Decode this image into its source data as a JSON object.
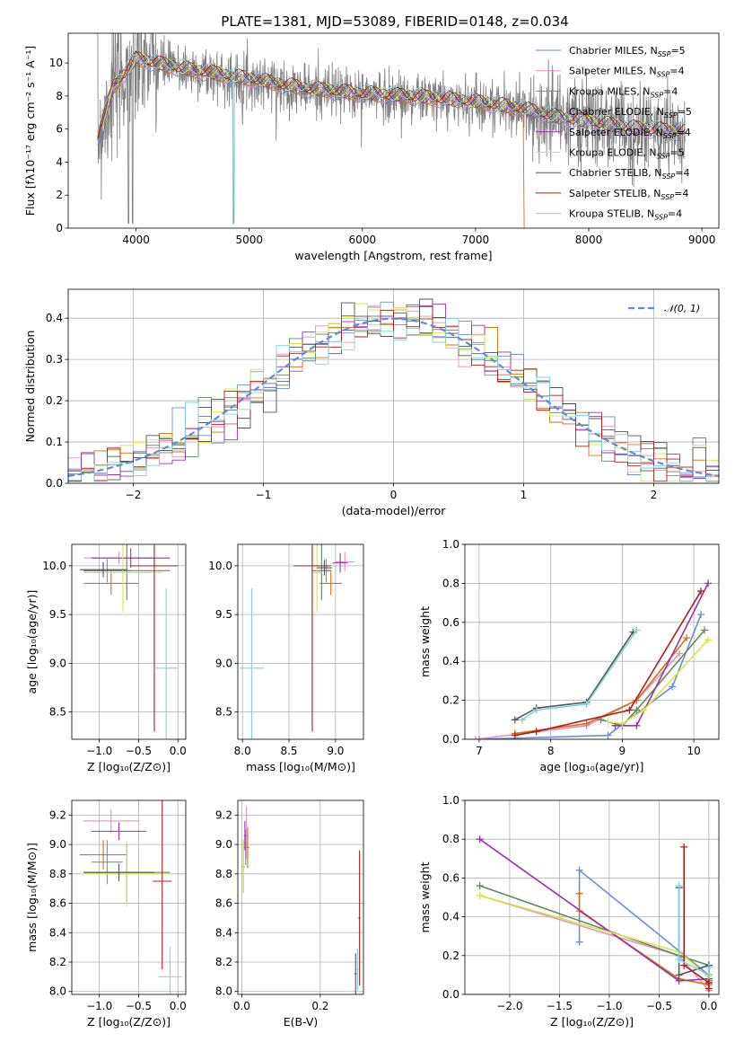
{
  "colors": [
    "#6b8fd6",
    "#e68fbf",
    "#d4720f",
    "#5e8a5a",
    "#9b30b0",
    "#d8e640",
    "#555555",
    "#b01c1c",
    "#7fd4d9"
  ],
  "model_labels": [
    "Chabrier MILES, N",
    "Salpeter MILES, N",
    "Kroupa MILES, N",
    "Chabrier ELODIE, N",
    "Salpeter ELODIE, N",
    "Kroupa ELODIE, N",
    "Chabrier STELIB, N",
    "Salpeter STELIB, N",
    "Kroupa STELIB, N"
  ],
  "legend_sub": "SSP",
  "nssp": [
    "=5",
    "=4",
    "=4",
    "=5",
    "=4",
    "=5",
    "=4",
    "=4",
    "=4"
  ],
  "chart_data": [
    {
      "id": "spectrum",
      "type": "line",
      "title": "PLATE=1381, MJD=53089, FIBERID=0148, z=0.034",
      "xlabel": "wavelength [Angstrom, rest frame]",
      "ylabel": "Flux [fλ10⁻¹⁷ erg cm⁻² s⁻¹ A⁻¹]",
      "xlim": [
        3400,
        9150
      ],
      "ylim": [
        0,
        11.8
      ],
      "xticks": [
        4000,
        5000,
        6000,
        7000,
        8000,
        9000
      ],
      "yticks": [
        0,
        2,
        4,
        6,
        8,
        10
      ],
      "legend_position": "top-right",
      "series": [
        {
          "x": [
            3660,
            3800,
            4000,
            4200,
            4500,
            5000,
            5500,
            6000,
            6500,
            7000,
            7400,
            7700,
            8000,
            8400,
            8800
          ],
          "y": [
            5.5,
            8.5,
            10.2,
            9.9,
            9.5,
            9.0,
            8.4,
            8.1,
            7.9,
            7.6,
            7.2,
            6.7,
            6.4,
            6.0,
            5.8
          ]
        }
      ]
    },
    {
      "id": "residuals",
      "type": "histogram",
      "xlabel": "(data-model)/error",
      "ylabel": "Normed distribution",
      "xlim": [
        -2.5,
        2.5
      ],
      "ylim": [
        0,
        0.47
      ],
      "xticks": [
        -2,
        -1,
        0,
        1,
        2
      ],
      "yticks": [
        0.0,
        0.1,
        0.2,
        0.3,
        0.4
      ],
      "legend": "𝒩(0, 1)",
      "legend_position": "top-right",
      "bin_width": 0.1
    },
    {
      "id": "age-metallicity",
      "type": "scatter",
      "xlabel": "Z [log₁₀(Z/Z⊙)]",
      "ylabel": "age  [log₁₀(age/yr)]",
      "xlim": [
        -1.35,
        0.1
      ],
      "ylim": [
        8.22,
        10.22
      ],
      "xticks": [
        -1.0,
        -0.5,
        0.0
      ],
      "yticks": [
        8.5,
        9.0,
        9.5,
        10.0
      ],
      "points": [
        {
          "x": -0.9,
          "xerr": 0.3,
          "y": 9.95,
          "yerr": 0.12
        },
        {
          "x": -0.75,
          "xerr": 0.45,
          "y": 10.08,
          "yerr": 0.06
        },
        {
          "x": -0.85,
          "xerr": 0.35,
          "y": 9.82,
          "yerr": 0.12
        },
        {
          "x": -0.65,
          "xerr": 0.55,
          "y": 9.95,
          "yerr": 0.3
        },
        {
          "x": -0.6,
          "xerr": 0.5,
          "y": 10.08,
          "yerr": 0.1
        },
        {
          "x": -0.7,
          "xerr": 0.5,
          "y": 9.93,
          "yerr": 0.4
        },
        {
          "x": -0.95,
          "xerr": 0.3,
          "y": 9.96,
          "yerr": 0.08
        },
        {
          "x": -0.3,
          "xerr": 0.3,
          "y": 10.0,
          "yerr": 1.7
        },
        {
          "x": -0.15,
          "xerr": 0.15,
          "y": 8.95,
          "yerr": 0.82
        }
      ]
    },
    {
      "id": "age-mass",
      "type": "scatter",
      "xlabel": "mass [log₁₀(M/M⊙)]",
      "xlim": [
        7.95,
        9.3
      ],
      "ylim": [
        8.22,
        10.22
      ],
      "xticks": [
        8.0,
        8.5,
        9.0
      ],
      "yticks": [
        8.5,
        9.0,
        9.5,
        10.0
      ],
      "points": [
        {
          "x": 8.9,
          "xerr": 0.06,
          "y": 9.95,
          "yerr": 0.12
        },
        {
          "x": 9.1,
          "xerr": 0.1,
          "y": 10.04,
          "yerr": 0.1
        },
        {
          "x": 8.95,
          "xerr": 0.12,
          "y": 9.82,
          "yerr": 0.12
        },
        {
          "x": 8.85,
          "xerr": 0.1,
          "y": 9.95,
          "yerr": 0.3
        },
        {
          "x": 9.05,
          "xerr": 0.08,
          "y": 10.03,
          "yerr": 0.1
        },
        {
          "x": 8.8,
          "xerr": 0.06,
          "y": 9.93,
          "yerr": 0.4
        },
        {
          "x": 8.88,
          "xerr": 0.08,
          "y": 9.98,
          "yerr": 0.08
        },
        {
          "x": 8.75,
          "xerr": 0.2,
          "y": 10.0,
          "yerr": 1.7
        },
        {
          "x": 8.1,
          "xerr": 0.13,
          "y": 8.95,
          "yerr": 0.82
        }
      ]
    },
    {
      "id": "mass-weight-age",
      "type": "line",
      "xlabel": "age  [log₁₀(age/yr)]",
      "ylabel": "mass weight",
      "xlim": [
        6.8,
        10.35
      ],
      "ylim": [
        0,
        1.0
      ],
      "xticks": [
        7,
        8,
        9,
        10
      ],
      "yticks": [
        0.0,
        0.2,
        0.4,
        0.6,
        0.8,
        1.0
      ],
      "series": [
        {
          "x": [
            7.0,
            8.8,
            9.7,
            10.1
          ],
          "y": [
            0.0,
            0.02,
            0.27,
            0.64
          ]
        },
        {
          "x": [
            6.95,
            8.5,
            9.2,
            9.8
          ],
          "y": [
            0.0,
            0.07,
            0.2,
            0.44
          ]
        },
        {
          "x": [
            7.5,
            8.5,
            9.2,
            9.9
          ],
          "y": [
            0.03,
            0.08,
            0.2,
            0.52
          ]
        },
        {
          "x": [
            8.7,
            9.0,
            9.2,
            10.15
          ],
          "y": [
            0.1,
            0.07,
            0.15,
            0.56
          ]
        },
        {
          "x": [
            8.9,
            9.2,
            10.2
          ],
          "y": [
            0.07,
            0.07,
            0.8
          ]
        },
        {
          "x": [
            8.8,
            9.0,
            9.3,
            10.2
          ],
          "y": [
            0.09,
            0.08,
            0.15,
            0.51
          ]
        },
        {
          "x": [
            7.5,
            7.8,
            8.5,
            9.15
          ],
          "y": [
            0.1,
            0.16,
            0.19,
            0.55
          ]
        },
        {
          "x": [
            7.5,
            7.8,
            9.1,
            10.1
          ],
          "y": [
            0.02,
            0.04,
            0.15,
            0.76
          ]
        },
        {
          "x": [
            7.6,
            7.8,
            8.5,
            9.2
          ],
          "y": [
            0.1,
            0.15,
            0.18,
            0.56
          ]
        }
      ]
    },
    {
      "id": "mass-metallicity",
      "type": "scatter",
      "xlabel": "Z [log₁₀(Z/Z⊙)]",
      "ylabel": "mass [log₁₀(M/M⊙)]",
      "xlim": [
        -1.35,
        0.1
      ],
      "ylim": [
        7.98,
        9.3
      ],
      "xticks": [
        -1.0,
        -0.5,
        0.0
      ],
      "yticks": [
        8.0,
        8.2,
        8.4,
        8.6,
        8.8,
        9.0,
        9.2
      ],
      "points": [
        {
          "x": -0.9,
          "xerr": 0.2,
          "y": 8.88,
          "yerr": 0.15
        },
        {
          "x": -0.85,
          "xerr": 0.35,
          "y": 9.16,
          "yerr": 0.08
        },
        {
          "x": -0.95,
          "xerr": 0.3,
          "y": 8.93,
          "yerr": 0.1
        },
        {
          "x": -0.65,
          "xerr": 0.55,
          "y": 8.81,
          "yerr": 0.2
        },
        {
          "x": -0.75,
          "xerr": 0.35,
          "y": 9.09,
          "yerr": 0.06
        },
        {
          "x": -0.65,
          "xerr": 0.55,
          "y": 8.8,
          "yerr": 0.22
        },
        {
          "x": -0.75,
          "xerr": 0.45,
          "y": 8.81,
          "yerr": 0.06
        },
        {
          "x": -0.2,
          "xerr": 0.12,
          "y": 8.75,
          "yerr": 0.6
        },
        {
          "x": -0.1,
          "xerr": 0.15,
          "y": 8.1,
          "yerr": 0.2
        }
      ]
    },
    {
      "id": "mass-ebv",
      "type": "scatter",
      "xlabel": "E(B-V)",
      "xlim": [
        -0.01,
        0.31
      ],
      "ylim": [
        7.98,
        9.3
      ],
      "xticks": [
        0.0,
        0.2
      ],
      "yticks": [
        8.0,
        8.2,
        8.4,
        8.6,
        8.8,
        9.0,
        9.2
      ],
      "points": [
        {
          "x": 0.01,
          "xerr": 0.005,
          "y": 8.98,
          "yerr": 0.12
        },
        {
          "x": 0.012,
          "xerr": 0.004,
          "y": 9.08,
          "yerr": 0.18
        },
        {
          "x": 0.015,
          "xerr": 0.004,
          "y": 8.98,
          "yerr": 0.14
        },
        {
          "x": 0.004,
          "xerr": 0.004,
          "y": 8.85,
          "yerr": 0.18
        },
        {
          "x": 0.008,
          "xerr": 0.003,
          "y": 9.06,
          "yerr": 0.1
        },
        {
          "x": 0.004,
          "xerr": 0.003,
          "y": 8.85,
          "yerr": 0.18
        },
        {
          "x": 0.29,
          "xerr": 0.003,
          "y": 8.12,
          "yerr": 0.14
        },
        {
          "x": 0.3,
          "xerr": 0.003,
          "y": 8.5,
          "yerr": 0.46
        },
        {
          "x": 0.295,
          "xerr": 0.003,
          "y": 8.15,
          "yerr": 0.14
        }
      ]
    },
    {
      "id": "mass-weight-metallicity",
      "type": "line",
      "xlabel": "Z [log₁₀(Z/Z⊙)]",
      "ylabel": "mass weight",
      "xlim": [
        -2.45,
        0.1
      ],
      "ylim": [
        0,
        1.0
      ],
      "xticks": [
        -2.0,
        -1.5,
        -1.0,
        -0.5,
        0.0
      ],
      "yticks": [
        0.0,
        0.2,
        0.4,
        0.6,
        0.8,
        1.0
      ],
      "series": [
        {
          "x": [
            -1.3,
            -1.3,
            0.0,
            0.0
          ],
          "y": [
            0.27,
            0.64,
            0.1,
            0.06
          ]
        },
        {
          "x": [
            -2.3,
            -0.3,
            0.0
          ],
          "y": [
            0.51,
            0.2,
            0.02
          ]
        },
        {
          "x": [
            -1.3,
            -1.3,
            -0.3,
            0.0
          ],
          "y": [
            0.52,
            0.43,
            0.08,
            0.05
          ]
        },
        {
          "x": [
            -2.3,
            -0.3,
            0.0,
            0.0
          ],
          "y": [
            0.56,
            0.2,
            0.15,
            0.07
          ]
        },
        {
          "x": [
            -2.3,
            -0.3,
            0.0
          ],
          "y": [
            0.8,
            0.07,
            0.08
          ]
        },
        {
          "x": [
            -2.3,
            -0.3,
            0.0
          ],
          "y": [
            0.51,
            0.22,
            0.09
          ]
        },
        {
          "x": [
            -0.3,
            -0.3,
            0.0,
            0.0
          ],
          "y": [
            0.55,
            0.1,
            0.15,
            0.1
          ]
        },
        {
          "x": [
            -0.25,
            -0.25,
            0.0,
            0.0
          ],
          "y": [
            0.76,
            0.15,
            0.06,
            0.03
          ]
        },
        {
          "x": [
            -0.3,
            -0.3,
            0.0,
            0.0
          ],
          "y": [
            0.56,
            0.18,
            0.1,
            0.14
          ]
        }
      ]
    }
  ]
}
